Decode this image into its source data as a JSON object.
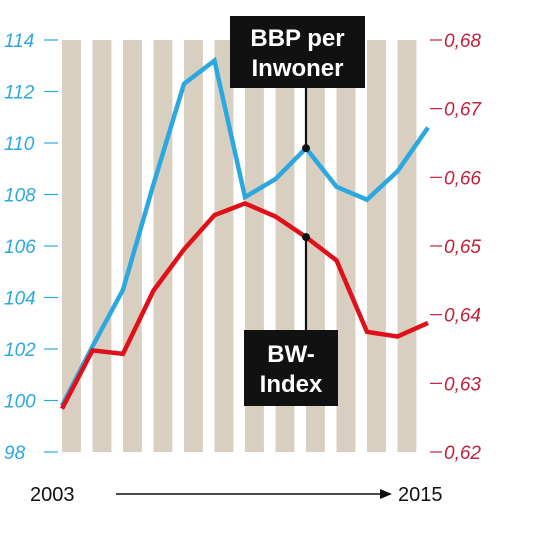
{
  "chart_data": {
    "type": "line",
    "x": [
      2003,
      2004,
      2005,
      2006,
      2007,
      2008,
      2009,
      2010,
      2011,
      2012,
      2013,
      2014,
      2015
    ],
    "x_range": [
      2003,
      2015
    ],
    "x_labels": {
      "start": "2003",
      "end": "2015"
    },
    "y_left": {
      "ticks": [
        "98",
        "100",
        "102",
        "104",
        "106",
        "108",
        "110",
        "112",
        "114"
      ],
      "range": [
        98,
        114
      ],
      "color": "#2ba8e0"
    },
    "y_right": {
      "ticks": [
        "0,62",
        "0,63",
        "0,64",
        "0,65",
        "0,66",
        "0,67",
        "0,68"
      ],
      "range": [
        0.62,
        0.68
      ],
      "color": "#c0203a"
    },
    "series": [
      {
        "name": "BBP per Inwoner",
        "axis": "left",
        "color": "#2ba8e0",
        "values": [
          99.8,
          102.1,
          104.3,
          108.4,
          112.3,
          113.2,
          107.9,
          108.6,
          109.8,
          108.3,
          107.8,
          108.9,
          110.6
        ]
      },
      {
        "name": "BW-Index",
        "axis": "right",
        "color": "#e0101a",
        "values": [
          0.6263,
          0.6348,
          0.6343,
          0.6435,
          0.6495,
          0.6545,
          0.6562,
          0.6543,
          0.6513,
          0.6479,
          0.6375,
          0.6368,
          0.6388
        ]
      }
    ],
    "callouts": [
      {
        "series": "BBP per Inwoner",
        "lines": [
          "BBP per",
          "Inwoner"
        ]
      },
      {
        "series": "BW-Index",
        "lines": [
          "BW-",
          "Index"
        ]
      }
    ],
    "background": {
      "stripe_color": "#d8cfc0",
      "gap_color": "#ffffff"
    },
    "grid": false
  }
}
